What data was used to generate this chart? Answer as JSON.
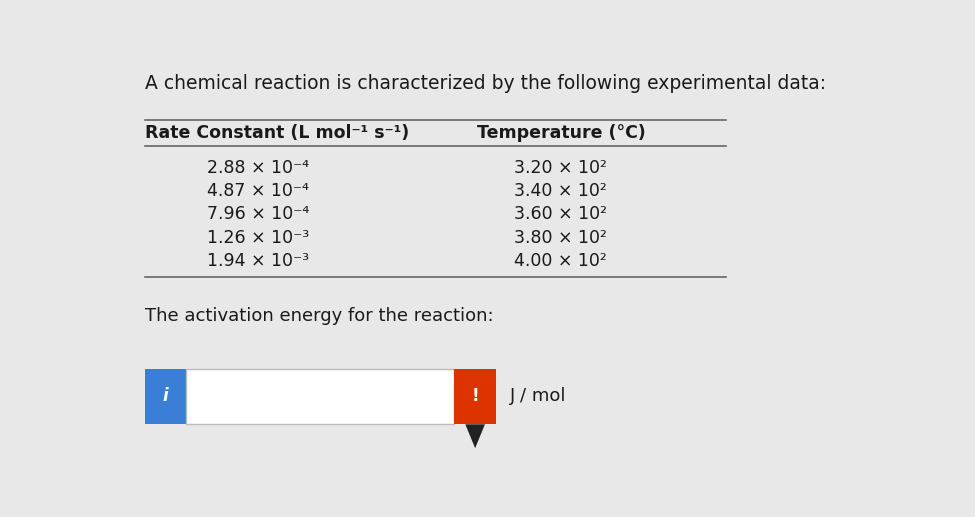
{
  "title": "A chemical reaction is characterized by the following experimental data:",
  "col1_header": "Rate Constant (L mol⁻¹ s⁻¹)",
  "col2_header": "Temperature (°C)",
  "rate_constants": [
    "2.88 × 10⁻⁴",
    "4.87 × 10⁻⁴",
    "7.96 × 10⁻⁴",
    "1.26 × 10⁻³",
    "1.94 × 10⁻³"
  ],
  "temperatures": [
    "3.20 × 10²",
    "3.40 × 10²",
    "3.60 × 10²",
    "3.80 × 10²",
    "4.00 × 10²"
  ],
  "activation_label": "The activation energy for the reaction:",
  "unit_label": "J / mol",
  "bg_color": "#e8e8e8",
  "table_line_color": "#666666",
  "text_color": "#1a1a1a",
  "input_box_color": "#ffffff",
  "input_box_border": "#bbbbbb",
  "blue_button_color": "#3a7fd5",
  "orange_button_color": "#dd3300",
  "blue_icon": "i",
  "orange_icon": "!",
  "title_fontsize": 13.5,
  "header_fontsize": 12.5,
  "data_fontsize": 12.5,
  "activation_fontsize": 13,
  "unit_fontsize": 13
}
